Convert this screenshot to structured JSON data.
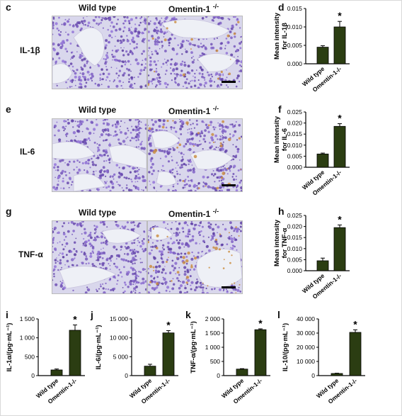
{
  "panel_letters": [
    "c",
    "d",
    "e",
    "f",
    "g",
    "h",
    "i",
    "j",
    "k",
    "l"
  ],
  "column_headers": {
    "wild_type": "Wild type",
    "omentin": "Omentin-1",
    "omentin_sup": "-/-"
  },
  "row_labels": [
    "IL-1β",
    "IL-6",
    "TNF-α"
  ],
  "colors": {
    "bar_wt": "#2b3d12",
    "bar_ko": "#2b3d12",
    "tissue_bg": "#d9d7ec",
    "tissue_cell": "#6a4f9e",
    "tissue_stain": "#c98a3a"
  },
  "chart_data": [
    {
      "panel": "d",
      "type": "bar",
      "categories": [
        "Wild type",
        "Omentin-1-/-"
      ],
      "values": [
        0.0045,
        0.01
      ],
      "errors": [
        0.0004,
        0.0015
      ],
      "significance": [
        "",
        "*"
      ],
      "ylabel": "Mean intensity\nfor IL-1β",
      "ylim": [
        0,
        0.015
      ],
      "yticks": [
        "0.000",
        "0.005",
        "0.010",
        "0.015"
      ],
      "ytick_values": [
        0,
        0.005,
        0.01,
        0.015
      ]
    },
    {
      "panel": "f",
      "type": "bar",
      "categories": [
        "Wild type",
        "Omentin-1-/-"
      ],
      "values": [
        0.006,
        0.0185
      ],
      "errors": [
        0.0004,
        0.0012
      ],
      "significance": [
        "",
        "*"
      ],
      "ylabel": "Mean intensity\nfor IL-6",
      "ylim": [
        0,
        0.025
      ],
      "yticks": [
        "0.000",
        "0.005",
        "0.010",
        "0.015",
        "0.020",
        "0.025"
      ],
      "ytick_values": [
        0,
        0.005,
        0.01,
        0.015,
        0.02,
        0.025
      ]
    },
    {
      "panel": "h",
      "type": "bar",
      "categories": [
        "Wild type",
        "Omentin-1-/-"
      ],
      "values": [
        0.0045,
        0.0195
      ],
      "errors": [
        0.0012,
        0.0012
      ],
      "significance": [
        "",
        "*"
      ],
      "ylabel": "Mean intensity\nfor TNF-α",
      "ylim": [
        0,
        0.025
      ],
      "yticks": [
        "0.000",
        "0.005",
        "0.010",
        "0.015",
        "0.020",
        "0.025"
      ],
      "ytick_values": [
        0,
        0.005,
        0.01,
        0.015,
        0.02,
        0.025
      ]
    },
    {
      "panel": "i",
      "type": "bar",
      "categories": [
        "Wild type",
        "Omentin-1-/-"
      ],
      "values": [
        150,
        1200
      ],
      "errors": [
        25,
        140
      ],
      "significance": [
        "",
        "*"
      ],
      "ylabel": "IL-1α/(pg·mL⁻¹)",
      "ylim": [
        0,
        1500
      ],
      "yticks": [
        "0",
        "500",
        "1 000",
        "1 500"
      ],
      "ytick_values": [
        0,
        500,
        1000,
        1500
      ]
    },
    {
      "panel": "j",
      "type": "bar",
      "categories": [
        "Wild type",
        "Omentin-1-/-"
      ],
      "values": [
        2500,
        11300
      ],
      "errors": [
        500,
        600
      ],
      "significance": [
        "",
        "*"
      ],
      "ylabel": "IL-6/(pg·mL⁻¹)",
      "ylim": [
        0,
        15000
      ],
      "yticks": [
        "0",
        "5 000",
        "10 000",
        "15 000"
      ],
      "ytick_values": [
        0,
        5000,
        10000,
        15000
      ]
    },
    {
      "panel": "k",
      "type": "bar",
      "categories": [
        "Wild type",
        "Omentin-1-/-"
      ],
      "values": [
        230,
        1620
      ],
      "errors": [
        15,
        30
      ],
      "significance": [
        "",
        "*"
      ],
      "ylabel": "TNF-α/(pg·mL⁻¹)",
      "ylim": [
        0,
        2000
      ],
      "yticks": [
        "0",
        "500",
        "1 000",
        "1 500",
        "2 000"
      ],
      "ytick_values": [
        0,
        500,
        1000,
        1500,
        2000
      ]
    },
    {
      "panel": "l",
      "type": "bar",
      "categories": [
        "Wild type",
        "Omentin-1-/-"
      ],
      "values": [
        1500,
        30500
      ],
      "errors": [
        200,
        1800
      ],
      "significance": [
        "",
        "*"
      ],
      "ylabel": "IL-10/(pg·mL⁻¹)",
      "ylim": [
        0,
        40000
      ],
      "yticks": [
        "0",
        "10 000",
        "20 000",
        "30 000",
        "40 000"
      ],
      "ytick_values": [
        0,
        10000,
        20000,
        30000,
        40000
      ]
    }
  ]
}
